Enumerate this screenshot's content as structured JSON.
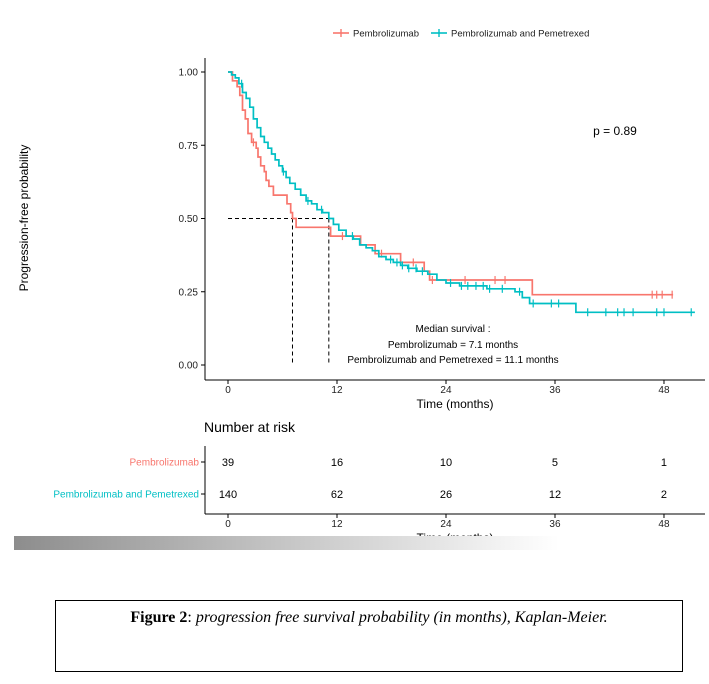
{
  "chart_data": [
    {
      "type": "line",
      "subtype": "kaplan-meier",
      "title": "",
      "xlabel": "Time (months)",
      "ylabel": "Progression-free probability",
      "xlim": [
        -2,
        52
      ],
      "ylim": [
        0,
        1
      ],
      "x_ticks": [
        0,
        12,
        24,
        36,
        48
      ],
      "x_tick_labels": [
        "0",
        "12",
        "24",
        "36",
        "48"
      ],
      "y_ticks": [
        0,
        0.25,
        0.5,
        0.75,
        1.0
      ],
      "y_tick_labels": [
        "0.00",
        "0.25",
        "0.50",
        "0.75",
        "1.00"
      ],
      "grid": false,
      "legend_position": "top",
      "series": [
        {
          "name": "Pembrolizumab",
          "color": "#F8766D",
          "steps": [
            [
              0,
              1.0
            ],
            [
              0.5,
              0.97
            ],
            [
              1.0,
              0.95
            ],
            [
              1.3,
              0.92
            ],
            [
              1.6,
              0.87
            ],
            [
              1.9,
              0.84
            ],
            [
              2.2,
              0.79
            ],
            [
              2.6,
              0.76
            ],
            [
              3.1,
              0.74
            ],
            [
              3.3,
              0.71
            ],
            [
              3.6,
              0.68
            ],
            [
              4.0,
              0.66
            ],
            [
              4.2,
              0.63
            ],
            [
              4.5,
              0.61
            ],
            [
              5.0,
              0.58
            ],
            [
              6.5,
              0.55
            ],
            [
              6.9,
              0.52
            ],
            [
              7.1,
              0.5
            ],
            [
              7.5,
              0.47
            ],
            [
              11.3,
              0.44
            ],
            [
              12.8,
              0.44
            ],
            [
              14.6,
              0.41
            ],
            [
              16.2,
              0.38
            ],
            [
              19.0,
              0.35
            ],
            [
              21.6,
              0.32
            ],
            [
              22.2,
              0.29
            ],
            [
              33.5,
              0.24
            ],
            [
              49.0,
              0.24
            ]
          ],
          "censor_times": [
            2.8,
            12.6,
            16.9,
            20.4,
            22.5,
            26.1,
            29.4,
            30.5,
            46.7,
            47.2,
            47.8,
            48.9
          ]
        },
        {
          "name": "Pembrolizumab and Pemetrexed",
          "color": "#00BFC4",
          "steps": [
            [
              0,
              1.0
            ],
            [
              0.4,
              0.99
            ],
            [
              0.8,
              0.98
            ],
            [
              1.2,
              0.96
            ],
            [
              1.6,
              0.93
            ],
            [
              2.0,
              0.91
            ],
            [
              2.4,
              0.88
            ],
            [
              2.8,
              0.84
            ],
            [
              3.2,
              0.81
            ],
            [
              3.6,
              0.78
            ],
            [
              4.0,
              0.76
            ],
            [
              4.4,
              0.74
            ],
            [
              4.8,
              0.72
            ],
            [
              5.2,
              0.7
            ],
            [
              5.6,
              0.68
            ],
            [
              6.0,
              0.66
            ],
            [
              6.4,
              0.64
            ],
            [
              6.8,
              0.62
            ],
            [
              7.4,
              0.6
            ],
            [
              8.0,
              0.58
            ],
            [
              8.6,
              0.56
            ],
            [
              9.2,
              0.55
            ],
            [
              9.8,
              0.53
            ],
            [
              10.4,
              0.52
            ],
            [
              11.1,
              0.5
            ],
            [
              11.6,
              0.48
            ],
            [
              12.2,
              0.46
            ],
            [
              13.0,
              0.44
            ],
            [
              13.8,
              0.43
            ],
            [
              14.5,
              0.41
            ],
            [
              15.2,
              0.4
            ],
            [
              15.9,
              0.39
            ],
            [
              16.6,
              0.37
            ],
            [
              17.4,
              0.36
            ],
            [
              18.2,
              0.35
            ],
            [
              19.0,
              0.34
            ],
            [
              19.8,
              0.33
            ],
            [
              20.8,
              0.32
            ],
            [
              22.0,
              0.31
            ],
            [
              23.0,
              0.29
            ],
            [
              24.0,
              0.28
            ],
            [
              25.5,
              0.27
            ],
            [
              27.0,
              0.27
            ],
            [
              28.5,
              0.26
            ],
            [
              31.6,
              0.25
            ],
            [
              32.4,
              0.23
            ],
            [
              33.2,
              0.21
            ],
            [
              38.3,
              0.18
            ],
            [
              51.4,
              0.18
            ]
          ],
          "censor_times": [
            1.5,
            6.1,
            8.8,
            10.3,
            13.7,
            17.9,
            18.6,
            19.2,
            19.9,
            20.7,
            21.4,
            24.5,
            25.7,
            26.4,
            27.3,
            28.1,
            28.8,
            30.2,
            32.1,
            33.6,
            35.6,
            36.4,
            39.6,
            41.6,
            42.9,
            43.6,
            44.6,
            47.2,
            48.0,
            51.0
          ]
        }
      ],
      "median_lines": [
        7.1,
        11.1
      ],
      "annotations": {
        "p_value": "p = 0.89",
        "median_title": "Median survival :",
        "median_line1": "Pembrolizumab = 7.1 months",
        "median_line2": "Pembrolizumab and Pemetrexed = 11.1 months"
      }
    },
    {
      "type": "table",
      "title": "Number at risk",
      "xlabel": "Time (months)",
      "x_ticks": [
        0,
        12,
        24,
        36,
        48
      ],
      "x_tick_labels": [
        "0",
        "12",
        "24",
        "36",
        "48"
      ],
      "rows": [
        {
          "name": "Pembrolizumab",
          "color": "#F8766D",
          "values": [
            "39",
            "16",
            "10",
            "5",
            "1"
          ]
        },
        {
          "name": "Pembrolizumab and Pemetrexed",
          "color": "#00BFC4",
          "values": [
            "140",
            "62",
            "26",
            "12",
            "2"
          ]
        }
      ]
    }
  ],
  "caption": {
    "label": "Figure 2",
    "separator": ":",
    "text": " progression free survival probability (in months), Kaplan-Meier."
  }
}
